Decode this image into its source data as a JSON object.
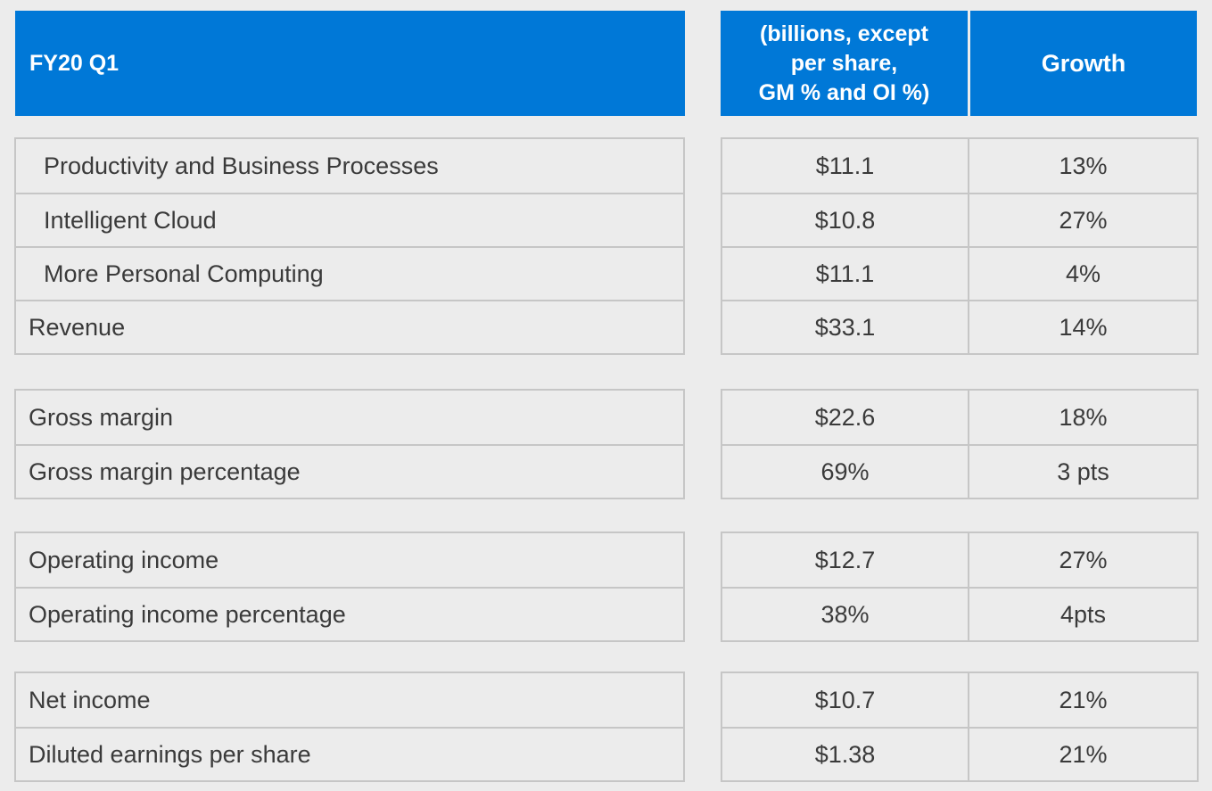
{
  "header": {
    "period": "FY20 Q1",
    "units": "(billions, except\nper share,\nGM % and OI %)",
    "growth": "Growth"
  },
  "sections": [
    {
      "rows": [
        {
          "label": "Productivity and Business Processes",
          "value": "$11.1",
          "growth": "13%",
          "indent": true
        },
        {
          "label": "Intelligent Cloud",
          "value": "$10.8",
          "growth": "27%",
          "indent": true
        },
        {
          "label": "More Personal Computing",
          "value": "$11.1",
          "growth": "4%",
          "indent": true
        },
        {
          "label": "Revenue",
          "value": "$33.1",
          "growth": "14%",
          "indent": false
        }
      ]
    },
    {
      "rows": [
        {
          "label": "Gross margin",
          "value": "$22.6",
          "growth": "18%",
          "indent": false
        },
        {
          "label": "Gross margin percentage",
          "value": "69%",
          "growth": "3 pts",
          "indent": false
        }
      ]
    },
    {
      "rows": [
        {
          "label": "Operating income",
          "value": "$12.7",
          "growth": "27%",
          "indent": false
        },
        {
          "label": "Operating income percentage",
          "value": "38%",
          "growth": "4pts",
          "indent": false
        }
      ]
    },
    {
      "rows": [
        {
          "label": "Net income",
          "value": "$10.7",
          "growth": "21%",
          "indent": false
        },
        {
          "label": "Diluted earnings per share",
          "value": "$1.38",
          "growth": "21%",
          "indent": false
        }
      ]
    }
  ],
  "colors": {
    "header_bg": "#0078d7",
    "header_text": "#ffffff",
    "border": "#c6c6c6",
    "background": "#ececec"
  }
}
